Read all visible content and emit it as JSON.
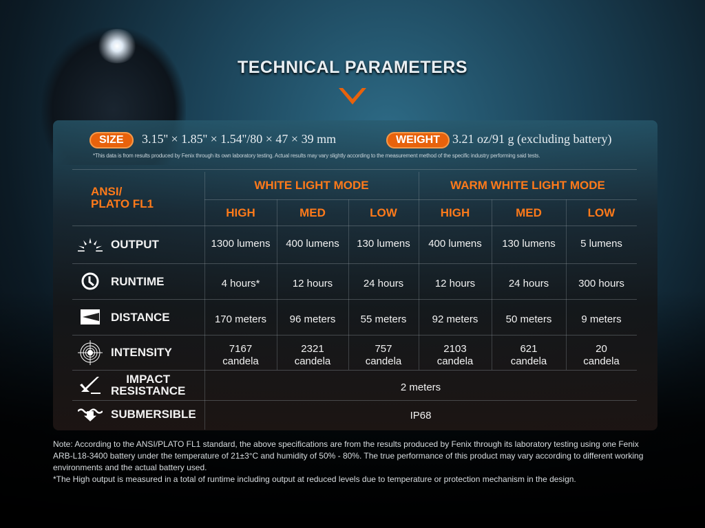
{
  "title": "TECHNICAL PARAMETERS",
  "size": {
    "label": "SIZE",
    "value": "3.15'' × 1.85'' × 1.54''/80 × 47 × 39 mm"
  },
  "weight": {
    "label": "WEIGHT",
    "value": "3.21 oz/91 g (excluding battery)"
  },
  "disclaimer": "*This data is from results produced by Fenix through its own laboratory testing. Actual results may vary slightly according to the measurement method of the specific industry performing said tests.",
  "standard_line1": "ANSI/",
  "standard_line2": "PLATO FL1",
  "modes": [
    "WHITE LIGHT MODE",
    "WARM WHITE LIGHT MODE"
  ],
  "levels": [
    "HIGH",
    "MED",
    "LOW",
    "HIGH",
    "MED",
    "LOW"
  ],
  "rows": [
    {
      "label": "OUTPUT",
      "icon": "sunburst-icon",
      "values": [
        "1300 lumens",
        "400 lumens",
        "130 lumens",
        "400 lumens",
        "130 lumens",
        "5 lumens"
      ]
    },
    {
      "label": "RUNTIME",
      "icon": "clock-icon",
      "values": [
        "4 hours*",
        "12 hours",
        "24 hours",
        "12 hours",
        "24 hours",
        "300 hours"
      ]
    },
    {
      "label": "DISTANCE",
      "icon": "beam-distance-icon",
      "values": [
        "170 meters",
        "96 meters",
        "55 meters",
        "92 meters",
        "50 meters",
        "9 meters"
      ]
    },
    {
      "label": "INTENSITY",
      "icon": "target-icon",
      "values": [
        "7167\ncandela",
        "2321\ncandela",
        "757\ncandela",
        "2103\ncandela",
        "621\ncandela",
        "20\ncandela"
      ]
    }
  ],
  "impact": {
    "label1": "IMPACT",
    "label2": "RESISTANCE",
    "icon": "impact-icon",
    "value": "2 meters"
  },
  "submersible": {
    "label": "SUBMERSIBLE",
    "icon": "water-arrow-icon",
    "value": "IP68"
  },
  "note1": "Note: According to the ANSI/PLATO FL1 standard, the above specifications are from the results produced by Fenix through its laboratory testing using one Fenix ARB-L18-3400 battery under the temperature of 21±3°C and humidity of 50% - 80%. The true performance of this product may vary according to different working environments and the actual battery used.",
  "note2": "*The High output is measured in a total of runtime including output at reduced levels due to temperature or protection mechanism in the design.",
  "colors": {
    "accent": "#e8620c",
    "header_text": "#ff7a1a"
  }
}
